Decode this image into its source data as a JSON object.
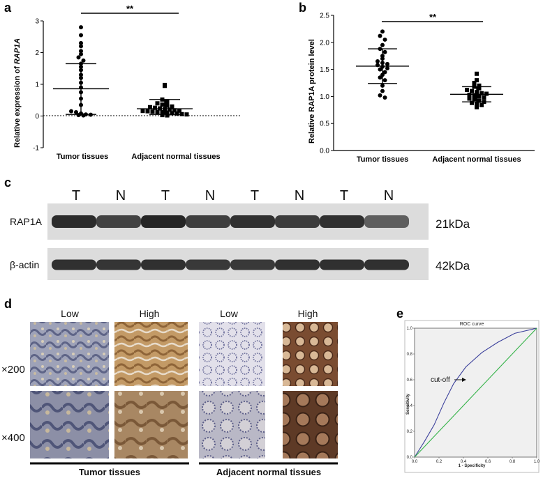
{
  "panels": {
    "a": "a",
    "b": "b",
    "c": "c",
    "d": "d",
    "e": "e"
  },
  "chart_data": [
    {
      "panel": "a",
      "type": "scatter",
      "ylabel": "Relative expression of RAP1A",
      "ylabel_plain": "Relative expression of ",
      "ylabel_italic": "RAP1A",
      "ylim": [
        -1,
        3
      ],
      "yticks": [
        "-1",
        "0",
        "1",
        "2",
        "3"
      ],
      "categories": [
        "Tumor tissues",
        "Adjacent normal tissues"
      ],
      "significance": "**",
      "reference_line": 0,
      "series": [
        {
          "values": [
            2.8,
            2.55,
            2.3,
            2.2,
            2.05,
            1.95,
            1.85,
            1.75,
            1.65,
            1.55,
            1.45,
            1.3,
            1.2,
            1.05,
            0.9,
            0.75,
            0.55,
            0.35,
            0.15,
            0.12,
            0.08,
            0.05,
            0.04,
            0.03,
            0.02
          ],
          "mean": 0.86,
          "sd_low": 0.05,
          "sd_high": 1.65
        },
        {
          "values": [
            0.98,
            0.95,
            0.52,
            0.45,
            0.4,
            0.36,
            0.33,
            0.3,
            0.28,
            0.26,
            0.24,
            0.22,
            0.2,
            0.18,
            0.17,
            0.16,
            0.15,
            0.14,
            0.13,
            0.12,
            0.11,
            0.09,
            0.08,
            0.06,
            0.05,
            0.03,
            0.02
          ],
          "mean": 0.23,
          "sd_low": 0.05,
          "sd_high": 0.52
        }
      ]
    },
    {
      "panel": "b",
      "type": "scatter",
      "ylabel": "Relative RAP1A protein level",
      "ylim": [
        0,
        2.5
      ],
      "yticks": [
        "0.0",
        "0.5",
        "1.0",
        "1.5",
        "2.0",
        "2.5"
      ],
      "categories": [
        "Tumor tissues",
        "Adjacent normal tissues"
      ],
      "significance": "**",
      "series": [
        {
          "values": [
            2.2,
            2.12,
            2.05,
            1.95,
            1.88,
            1.82,
            1.75,
            1.7,
            1.65,
            1.62,
            1.6,
            1.58,
            1.55,
            1.52,
            1.5,
            1.45,
            1.4,
            1.35,
            1.3,
            1.2,
            1.1,
            1.02,
            0.98
          ],
          "mean": 1.56,
          "sd_low": 1.24,
          "sd_high": 1.88
        },
        {
          "values": [
            1.42,
            1.3,
            1.25,
            1.2,
            1.18,
            1.15,
            1.12,
            1.1,
            1.08,
            1.06,
            1.05,
            1.03,
            1.02,
            1.0,
            0.98,
            0.96,
            0.95,
            0.92,
            0.9,
            0.88,
            0.86,
            0.84,
            0.8
          ],
          "mean": 1.04,
          "sd_low": 0.9,
          "sd_high": 1.18
        }
      ]
    },
    {
      "panel": "e",
      "type": "line",
      "title": "ROC curve",
      "xlabel": "1 - Specificity",
      "ylabel": "Sensitivity",
      "xlim": [
        0,
        1
      ],
      "ylim": [
        0,
        1
      ],
      "xticks": [
        "0.0",
        "0.2",
        "0.4",
        "0.6",
        "0.8",
        "1.0"
      ],
      "yticks": [
        "0.0",
        "0.2",
        "0.4",
        "0.6",
        "0.8",
        "1.0"
      ],
      "annotation": "cut-off",
      "cutoff_point": [
        0.42,
        0.7
      ],
      "series": [
        {
          "color": "#3a3f9b",
          "x": [
            0,
            0.08,
            0.16,
            0.24,
            0.32,
            0.42,
            0.55,
            0.68,
            0.82,
            1.0
          ],
          "y": [
            0,
            0.12,
            0.25,
            0.42,
            0.57,
            0.7,
            0.81,
            0.89,
            0.96,
            1.0
          ]
        },
        {
          "color": "#36b34a",
          "x": [
            0,
            1
          ],
          "y": [
            0,
            1
          ]
        }
      ]
    }
  ],
  "western_blot": {
    "lanes": [
      "T",
      "N",
      "T",
      "N",
      "T",
      "N",
      "T",
      "N"
    ],
    "rows": [
      {
        "label": "RAP1A",
        "kda": "21kDa",
        "intensity": [
          0.92,
          0.82,
          0.95,
          0.84,
          0.9,
          0.85,
          0.9,
          0.7
        ]
      },
      {
        "label": "β-actin",
        "kda": "42kDa",
        "intensity": [
          0.9,
          0.88,
          0.9,
          0.86,
          0.86,
          0.9,
          0.9,
          0.9
        ]
      }
    ]
  },
  "ihc": {
    "column_labels": [
      "Low",
      "High",
      "Low",
      "High"
    ],
    "row_labels": [
      "×200",
      "×400"
    ],
    "group_labels": [
      "Tumor tissues",
      "Adjacent normal tissues"
    ]
  },
  "colors": {
    "ihc_tumor_low": "#8a8fa8",
    "ihc_tumor_high": "#b08a5a",
    "ihc_normal_low": "#c8c6d6",
    "ihc_normal_high": "#8a5a3a",
    "roc_background": "#f0f0f0"
  }
}
